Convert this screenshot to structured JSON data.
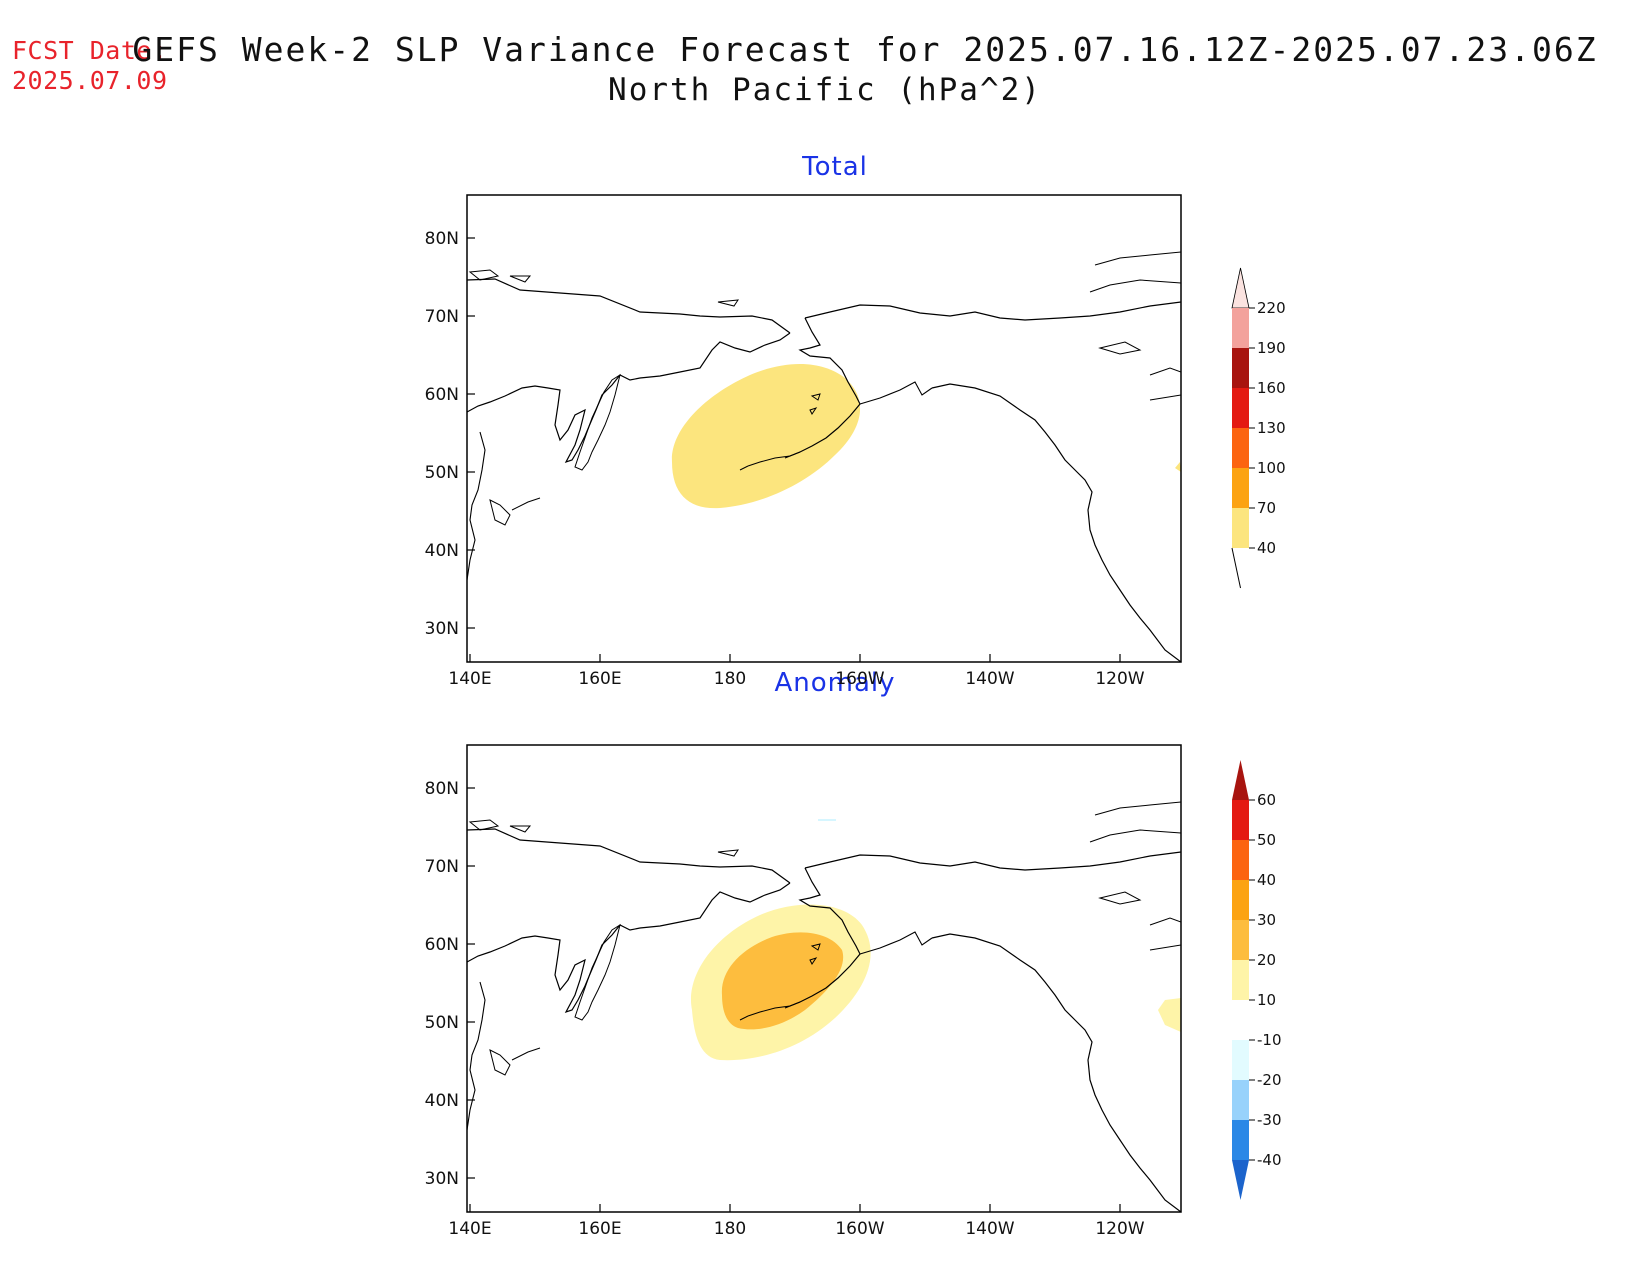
{
  "header": {
    "fcst_label": "FCST Date:",
    "fcst_date": "2025.07.09",
    "title_line1": "GEFS Week-2 SLP Variance Forecast for 2025.07.16.12Z-2025.07.23.06Z",
    "title_line2": "North Pacific (hPa^2)"
  },
  "panels": [
    {
      "title": "Total",
      "lat_labels": [
        "80N",
        "70N",
        "60N",
        "50N",
        "40N",
        "30N"
      ],
      "lon_labels": [
        "140E",
        "160E",
        "180",
        "160W",
        "140W",
        "120W"
      ],
      "colorbar": {
        "labels": [
          "220",
          "190",
          "160",
          "130",
          "100",
          "70",
          "40"
        ],
        "colors": [
          "#fbe3e0",
          "#f3a29c",
          "#a8140f",
          "#e41a12",
          "#fc6410",
          "#fca312",
          "#fce57e"
        ]
      }
    },
    {
      "title": "Anomaly",
      "lat_labels": [
        "80N",
        "70N",
        "60N",
        "50N",
        "40N",
        "30N"
      ],
      "lon_labels": [
        "140E",
        "160E",
        "180",
        "160W",
        "140W",
        "120W"
      ],
      "colorbar": {
        "labels": [
          "60",
          "50",
          "40",
          "30",
          "20",
          "10",
          "-10",
          "-20",
          "-30",
          "-40"
        ],
        "colors": [
          "#a8140f",
          "#e41a12",
          "#fc6410",
          "#fca312",
          "#fdbd3e",
          "#fef4a8",
          "#ffffff",
          "#e2fbff",
          "#98d2fb",
          "#2a88e6",
          "#1c64cc"
        ]
      }
    }
  ]
}
